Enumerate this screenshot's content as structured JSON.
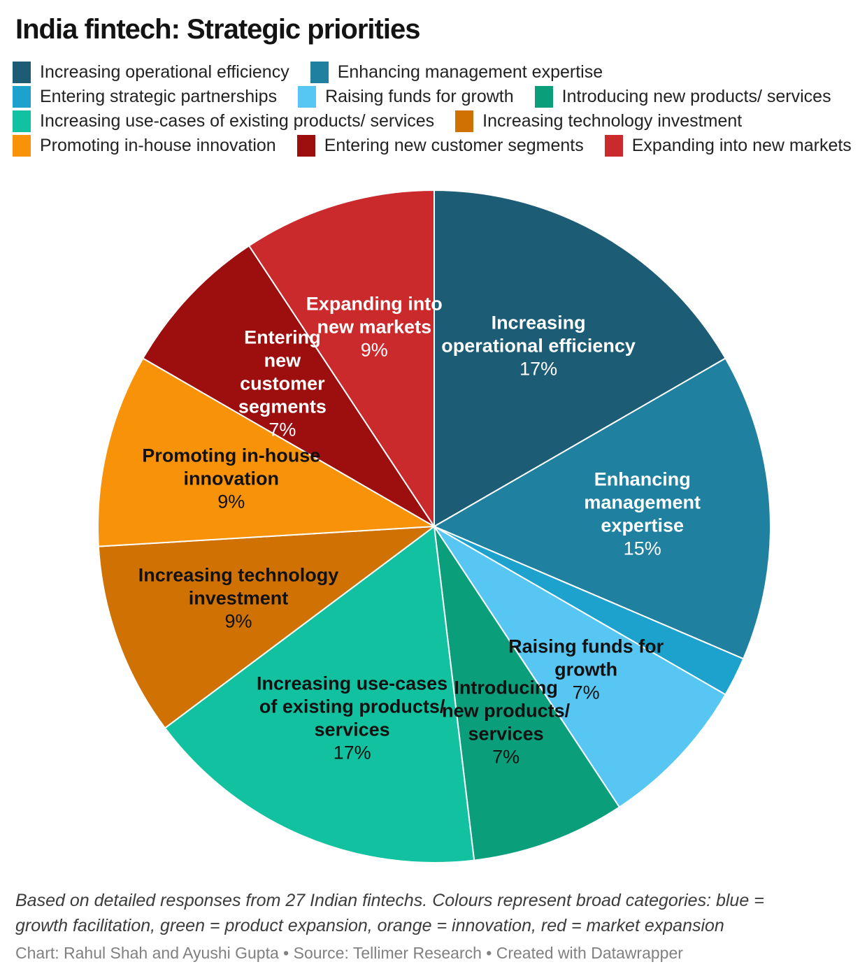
{
  "title": "India fintech: Strategic priorities",
  "legend": {
    "position": "top",
    "items": [
      {
        "label": "Increasing operational efficiency",
        "color": "#1d5c75"
      },
      {
        "label": "Enhancing management expertise",
        "color": "#1f819f"
      },
      {
        "label": "Entering strategic partnerships",
        "color": "#1ca2cc"
      },
      {
        "label": "Raising funds for growth",
        "color": "#58c6f2"
      },
      {
        "label": "Introducing new products/ services",
        "color": "#0a9e7b"
      },
      {
        "label": "Increasing use-cases of existing products/ services",
        "color": "#12c19f"
      },
      {
        "label": "Increasing technology investment",
        "color": "#cf7103"
      },
      {
        "label": "Promoting in-house innovation",
        "color": "#f89309"
      },
      {
        "label": "Entering new customer segments",
        "color": "#9d0e0e"
      },
      {
        "label": "Expanding into new markets",
        "color": "#cb2a2c"
      }
    ]
  },
  "chart_data": {
    "type": "pie",
    "title": "India fintech: Strategic priorities",
    "unit": "%",
    "start_angle_deg": 0,
    "clockwise": true,
    "legend_position": "top",
    "slices": [
      {
        "label": "Increasing operational efficiency",
        "value": 16.7,
        "display_pct": "17%",
        "color": "#1d5c75",
        "label_lines": [
          "Increasing",
          "operational efficiency"
        ],
        "label_color": "#ffffff"
      },
      {
        "label": "Enhancing management expertise",
        "value": 14.8,
        "display_pct": "15%",
        "color": "#1f819f",
        "label_lines": [
          "Enhancing",
          "management",
          "expertise"
        ],
        "label_color": "#ffffff"
      },
      {
        "label": "Entering strategic partnerships",
        "value": 1.9,
        "display_pct": null,
        "color": "#1ca2cc",
        "label_lines": null,
        "label_color": null
      },
      {
        "label": "Raising funds for growth",
        "value": 7.4,
        "display_pct": "7%",
        "color": "#58c6f2",
        "label_lines": [
          "Raising funds for",
          "growth"
        ],
        "label_color": "#111111"
      },
      {
        "label": "Introducing new products/ services",
        "value": 7.4,
        "display_pct": "7%",
        "color": "#0a9e7b",
        "label_lines": [
          "Introducing",
          "new products/",
          "services"
        ],
        "label_color": "#111111"
      },
      {
        "label": "Increasing use-cases of existing products/ services",
        "value": 16.7,
        "display_pct": "17%",
        "color": "#12c19f",
        "label_lines": [
          "Increasing use-cases",
          "of existing products/",
          "services"
        ],
        "label_color": "#111111"
      },
      {
        "label": "Increasing technology investment",
        "value": 9.3,
        "display_pct": "9%",
        "color": "#cf7103",
        "label_lines": [
          "Increasing technology",
          "investment"
        ],
        "label_color": "#111111"
      },
      {
        "label": "Promoting in-house innovation",
        "value": 9.3,
        "display_pct": "9%",
        "color": "#f89309",
        "label_lines": [
          "Promoting in-house",
          "innovation"
        ],
        "label_color": "#111111"
      },
      {
        "label": "Entering new customer segments",
        "value": 7.4,
        "display_pct": "7%",
        "color": "#9d0e0e",
        "label_lines": [
          "Entering",
          "new",
          "customer",
          "segments"
        ],
        "label_color": "#ffffff"
      },
      {
        "label": "Expanding into new markets",
        "value": 9.3,
        "display_pct": "9%",
        "color": "#cb2a2c",
        "label_lines": [
          "Expanding into",
          "new markets"
        ],
        "label_color": "#ffffff"
      }
    ]
  },
  "footer": {
    "note": "Based on detailed responses from 27 Indian fintechs. Colours represent broad categories: blue = growth facilitation, green = product expansion, orange = innovation, red = market expansion",
    "byline": "Chart: Rahul Shah and Ayushi Gupta • Source: Tellimer Research • Created with Datawrapper"
  }
}
